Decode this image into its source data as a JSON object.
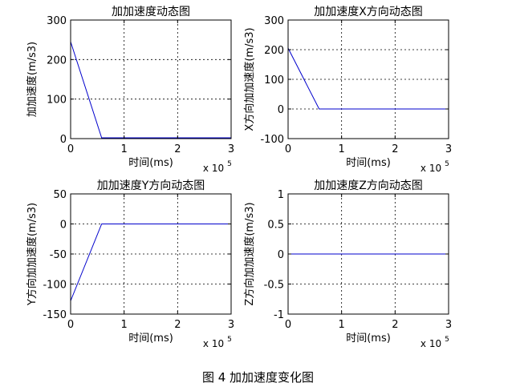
{
  "figure_caption": "图 4 加加速度变化图",
  "chart_data": [
    {
      "type": "line",
      "title": "加加速度动态图",
      "xlabel": "时间(ms)",
      "ylabel": "加加速度(m/s3)",
      "x_exponent": {
        "base": "x 10",
        "power": "5"
      },
      "xlim": [
        0,
        3
      ],
      "ylim": [
        0,
        300
      ],
      "xticks": [
        0,
        1,
        2,
        3
      ],
      "yticks": [
        0,
        100,
        200,
        300
      ],
      "grid": true,
      "line_color": "#0000cc",
      "series": [
        {
          "x": [
            0,
            0.58,
            3
          ],
          "values": [
            245,
            2,
            2
          ]
        }
      ]
    },
    {
      "type": "line",
      "title": "加加速度X方向动态图",
      "xlabel": "时间(ms)",
      "ylabel": "X方向加加速度(m/s3)",
      "x_exponent": {
        "base": "x 10",
        "power": "5"
      },
      "xlim": [
        0,
        3
      ],
      "ylim": [
        -100,
        300
      ],
      "xticks": [
        0,
        1,
        2,
        3
      ],
      "yticks": [
        -100,
        0,
        100,
        200,
        300
      ],
      "grid": true,
      "line_color": "#0000cc",
      "series": [
        {
          "x": [
            0,
            0.58,
            3
          ],
          "values": [
            205,
            0,
            0
          ]
        }
      ]
    },
    {
      "type": "line",
      "title": "加加速度Y方向动态图",
      "xlabel": "时间(ms)",
      "ylabel": "Y方向加加速度(m/s3)",
      "x_exponent": {
        "base": "x 10",
        "power": "5"
      },
      "xlim": [
        0,
        3
      ],
      "ylim": [
        -150,
        50
      ],
      "xticks": [
        0,
        1,
        2,
        3
      ],
      "yticks": [
        -150,
        -100,
        -50,
        0,
        50
      ],
      "grid": true,
      "line_color": "#0000cc",
      "series": [
        {
          "x": [
            0,
            0.58,
            3
          ],
          "values": [
            -128,
            0,
            0
          ]
        }
      ]
    },
    {
      "type": "line",
      "title": "加加速度Z方向动态图",
      "xlabel": "时间(ms)",
      "ylabel": "Z方向加加速度(m/s3)",
      "x_exponent": {
        "base": "x 10",
        "power": "5"
      },
      "xlim": [
        0,
        3
      ],
      "ylim": [
        -1,
        1
      ],
      "xticks": [
        0,
        1,
        2,
        3
      ],
      "yticks": [
        -1,
        -0.5,
        0,
        0.5,
        1
      ],
      "grid": true,
      "line_color": "#0000cc",
      "series": [
        {
          "x": [
            0,
            3
          ],
          "values": [
            0,
            0
          ]
        }
      ]
    }
  ]
}
